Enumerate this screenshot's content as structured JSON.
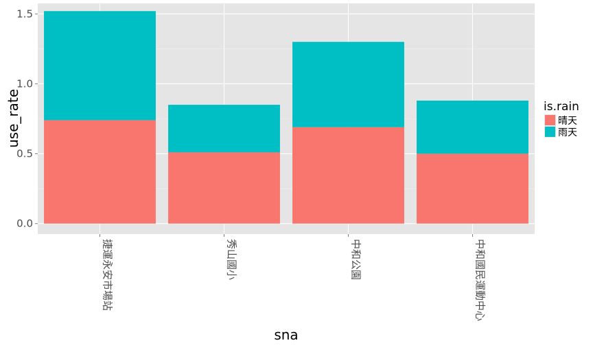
{
  "chart_data": {
    "type": "bar",
    "stacked": true,
    "categories": [
      "捷運永安市場站",
      "秀山國小",
      "中和公園",
      "中和國民運動中心"
    ],
    "series": [
      {
        "name": "晴天",
        "color": "#F8766D",
        "values": [
          0.74,
          0.51,
          0.69,
          0.5
        ]
      },
      {
        "name": "雨天",
        "color": "#00BFC4",
        "values": [
          0.78,
          0.34,
          0.61,
          0.38
        ]
      }
    ],
    "xlabel": "sna",
    "ylabel": "use_rate",
    "ylim": [
      -0.075,
      1.575
    ],
    "yticks": [
      0.0,
      0.5,
      1.0,
      1.5
    ],
    "ytick_labels": [
      "0.0",
      "0.5",
      "1.0",
      "1.5"
    ],
    "legend_title": "is.rain",
    "legend_position": "right",
    "grid": true
  }
}
